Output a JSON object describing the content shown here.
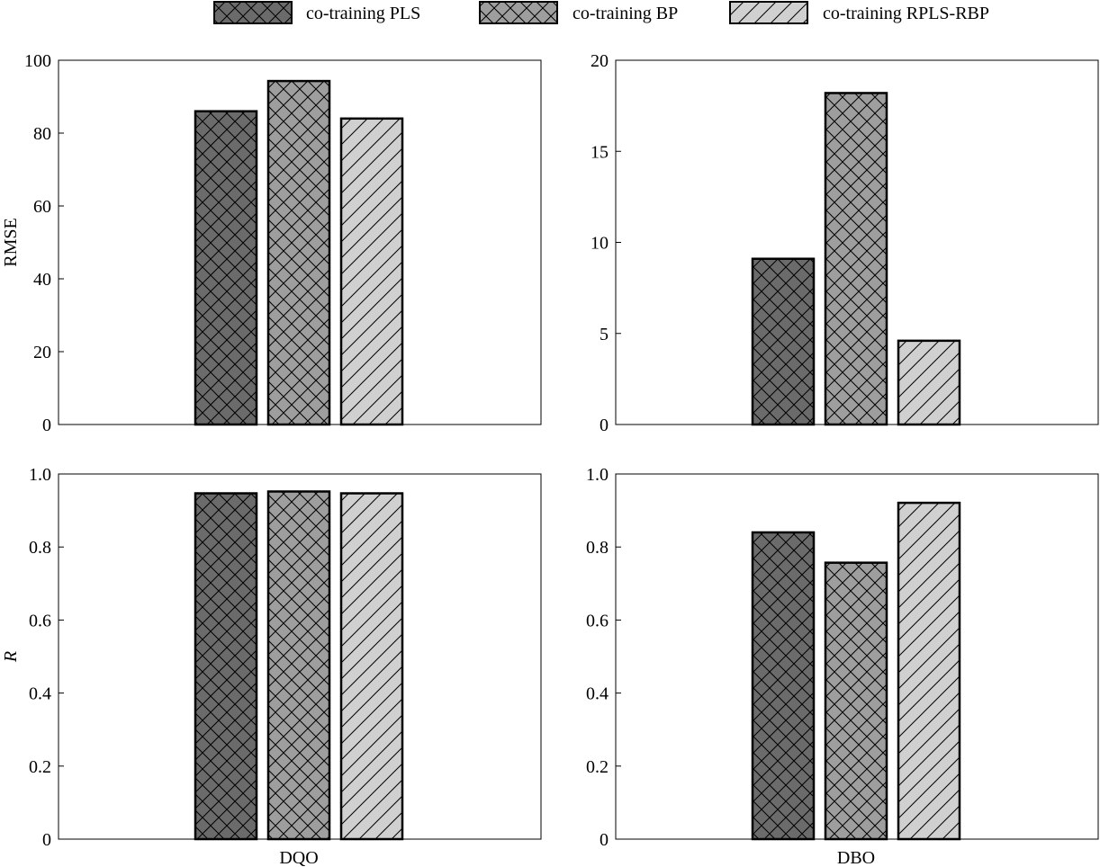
{
  "legend": [
    {
      "label": "co-training PLS",
      "fill": "#6b6b6b",
      "pattern": "crosshatch"
    },
    {
      "label": "co-training BP",
      "fill": "#9e9e9e",
      "pattern": "crosshatch"
    },
    {
      "label": "co-training RPLS-RBP",
      "fill": "#d0d0d0",
      "pattern": "diagonal"
    }
  ],
  "chart_data": [
    {
      "type": "bar",
      "id": "rmse-dqo",
      "ylabel": "RMSE",
      "ylabel_italic": false,
      "xlabel": "",
      "ylim": [
        0,
        100
      ],
      "yticks": [
        "0",
        "20",
        "40",
        "60",
        "80",
        "100"
      ],
      "categories": [
        "DQO"
      ],
      "show_category_label": false,
      "series": [
        {
          "name": "co-training PLS",
          "values": [
            86
          ]
        },
        {
          "name": "co-training BP",
          "values": [
            94.3
          ]
        },
        {
          "name": "co-training RPLS-RBP",
          "values": [
            84
          ]
        }
      ]
    },
    {
      "type": "bar",
      "id": "rmse-dbo",
      "ylabel": "",
      "ylabel_italic": false,
      "xlabel": "",
      "ylim": [
        0,
        20
      ],
      "yticks": [
        "0",
        "5",
        "10",
        "15",
        "20"
      ],
      "categories": [
        "DBO"
      ],
      "show_category_label": false,
      "series": [
        {
          "name": "co-training PLS",
          "values": [
            9.1
          ]
        },
        {
          "name": "co-training BP",
          "values": [
            18.2
          ]
        },
        {
          "name": "co-training RPLS-RBP",
          "values": [
            4.6
          ]
        }
      ]
    },
    {
      "type": "bar",
      "id": "r-dqo",
      "ylabel": "R",
      "ylabel_italic": true,
      "xlabel": "",
      "ylim": [
        0,
        1
      ],
      "yticks": [
        "0",
        "0.2",
        "0.4",
        "0.6",
        "0.8",
        "1.0"
      ],
      "categories": [
        "DQO"
      ],
      "show_category_label": true,
      "series": [
        {
          "name": "co-training PLS",
          "values": [
            0.947
          ]
        },
        {
          "name": "co-training BP",
          "values": [
            0.952
          ]
        },
        {
          "name": "co-training RPLS-RBP",
          "values": [
            0.947
          ]
        }
      ]
    },
    {
      "type": "bar",
      "id": "r-dbo",
      "ylabel": "",
      "ylabel_italic": false,
      "xlabel": "",
      "ylim": [
        0,
        1
      ],
      "yticks": [
        "0",
        "0.2",
        "0.4",
        "0.6",
        "0.8",
        "1.0"
      ],
      "categories": [
        "DBO"
      ],
      "show_category_label": true,
      "series": [
        {
          "name": "co-training PLS",
          "values": [
            0.84
          ]
        },
        {
          "name": "co-training BP",
          "values": [
            0.757
          ]
        },
        {
          "name": "co-training RPLS-RBP",
          "values": [
            0.921
          ]
        }
      ]
    }
  ]
}
